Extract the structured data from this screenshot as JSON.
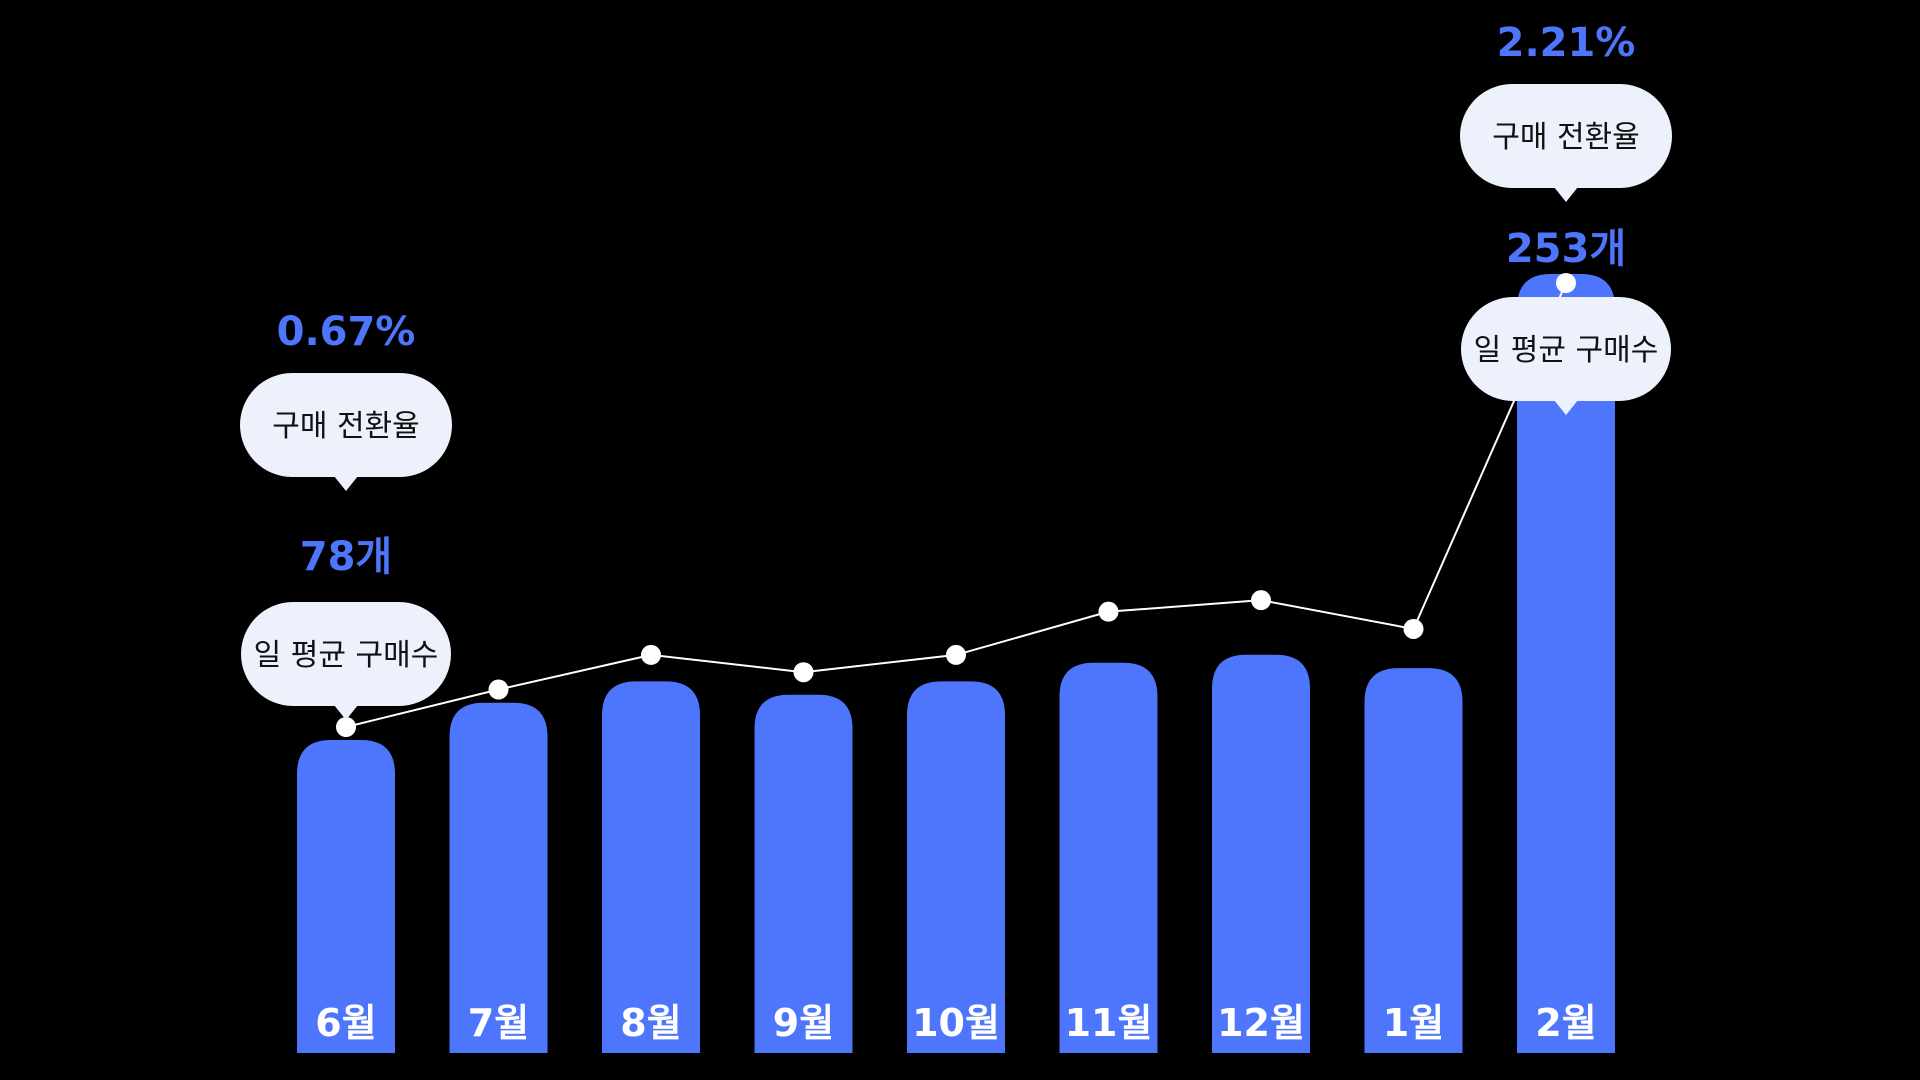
{
  "chart_data": {
    "type": "bar",
    "categories": [
      "6월",
      "7월",
      "8월",
      "9월",
      "10월",
      "11월",
      "12월",
      "1월",
      "2월"
    ],
    "series": [
      {
        "values": [
          78,
          92,
          100,
          95,
          100,
          107,
          110,
          105,
          253
        ]
      },
      {
        "values": [
          0.67,
          0.8,
          0.92,
          0.86,
          0.92,
          1.07,
          1.11,
          1.01,
          2.21
        ]
      }
    ],
    "annotations": [
      {
        "category": "6월",
        "conversion_value": "0.67%",
        "conversion_label": "구매 전환율",
        "count_value": "78개",
        "count_label": "일 평균 구매수"
      },
      {
        "category": "2월",
        "conversion_value": "2.21%",
        "conversion_label": "구매 전환율",
        "count_value": "253개",
        "count_label": "일 평균 구매수"
      }
    ],
    "colors": {
      "bar": "#4e76fd",
      "label_accent": "#4e76fd",
      "line": "#ffffff",
      "bubble": "#edf1fc",
      "background": "#000000"
    }
  }
}
